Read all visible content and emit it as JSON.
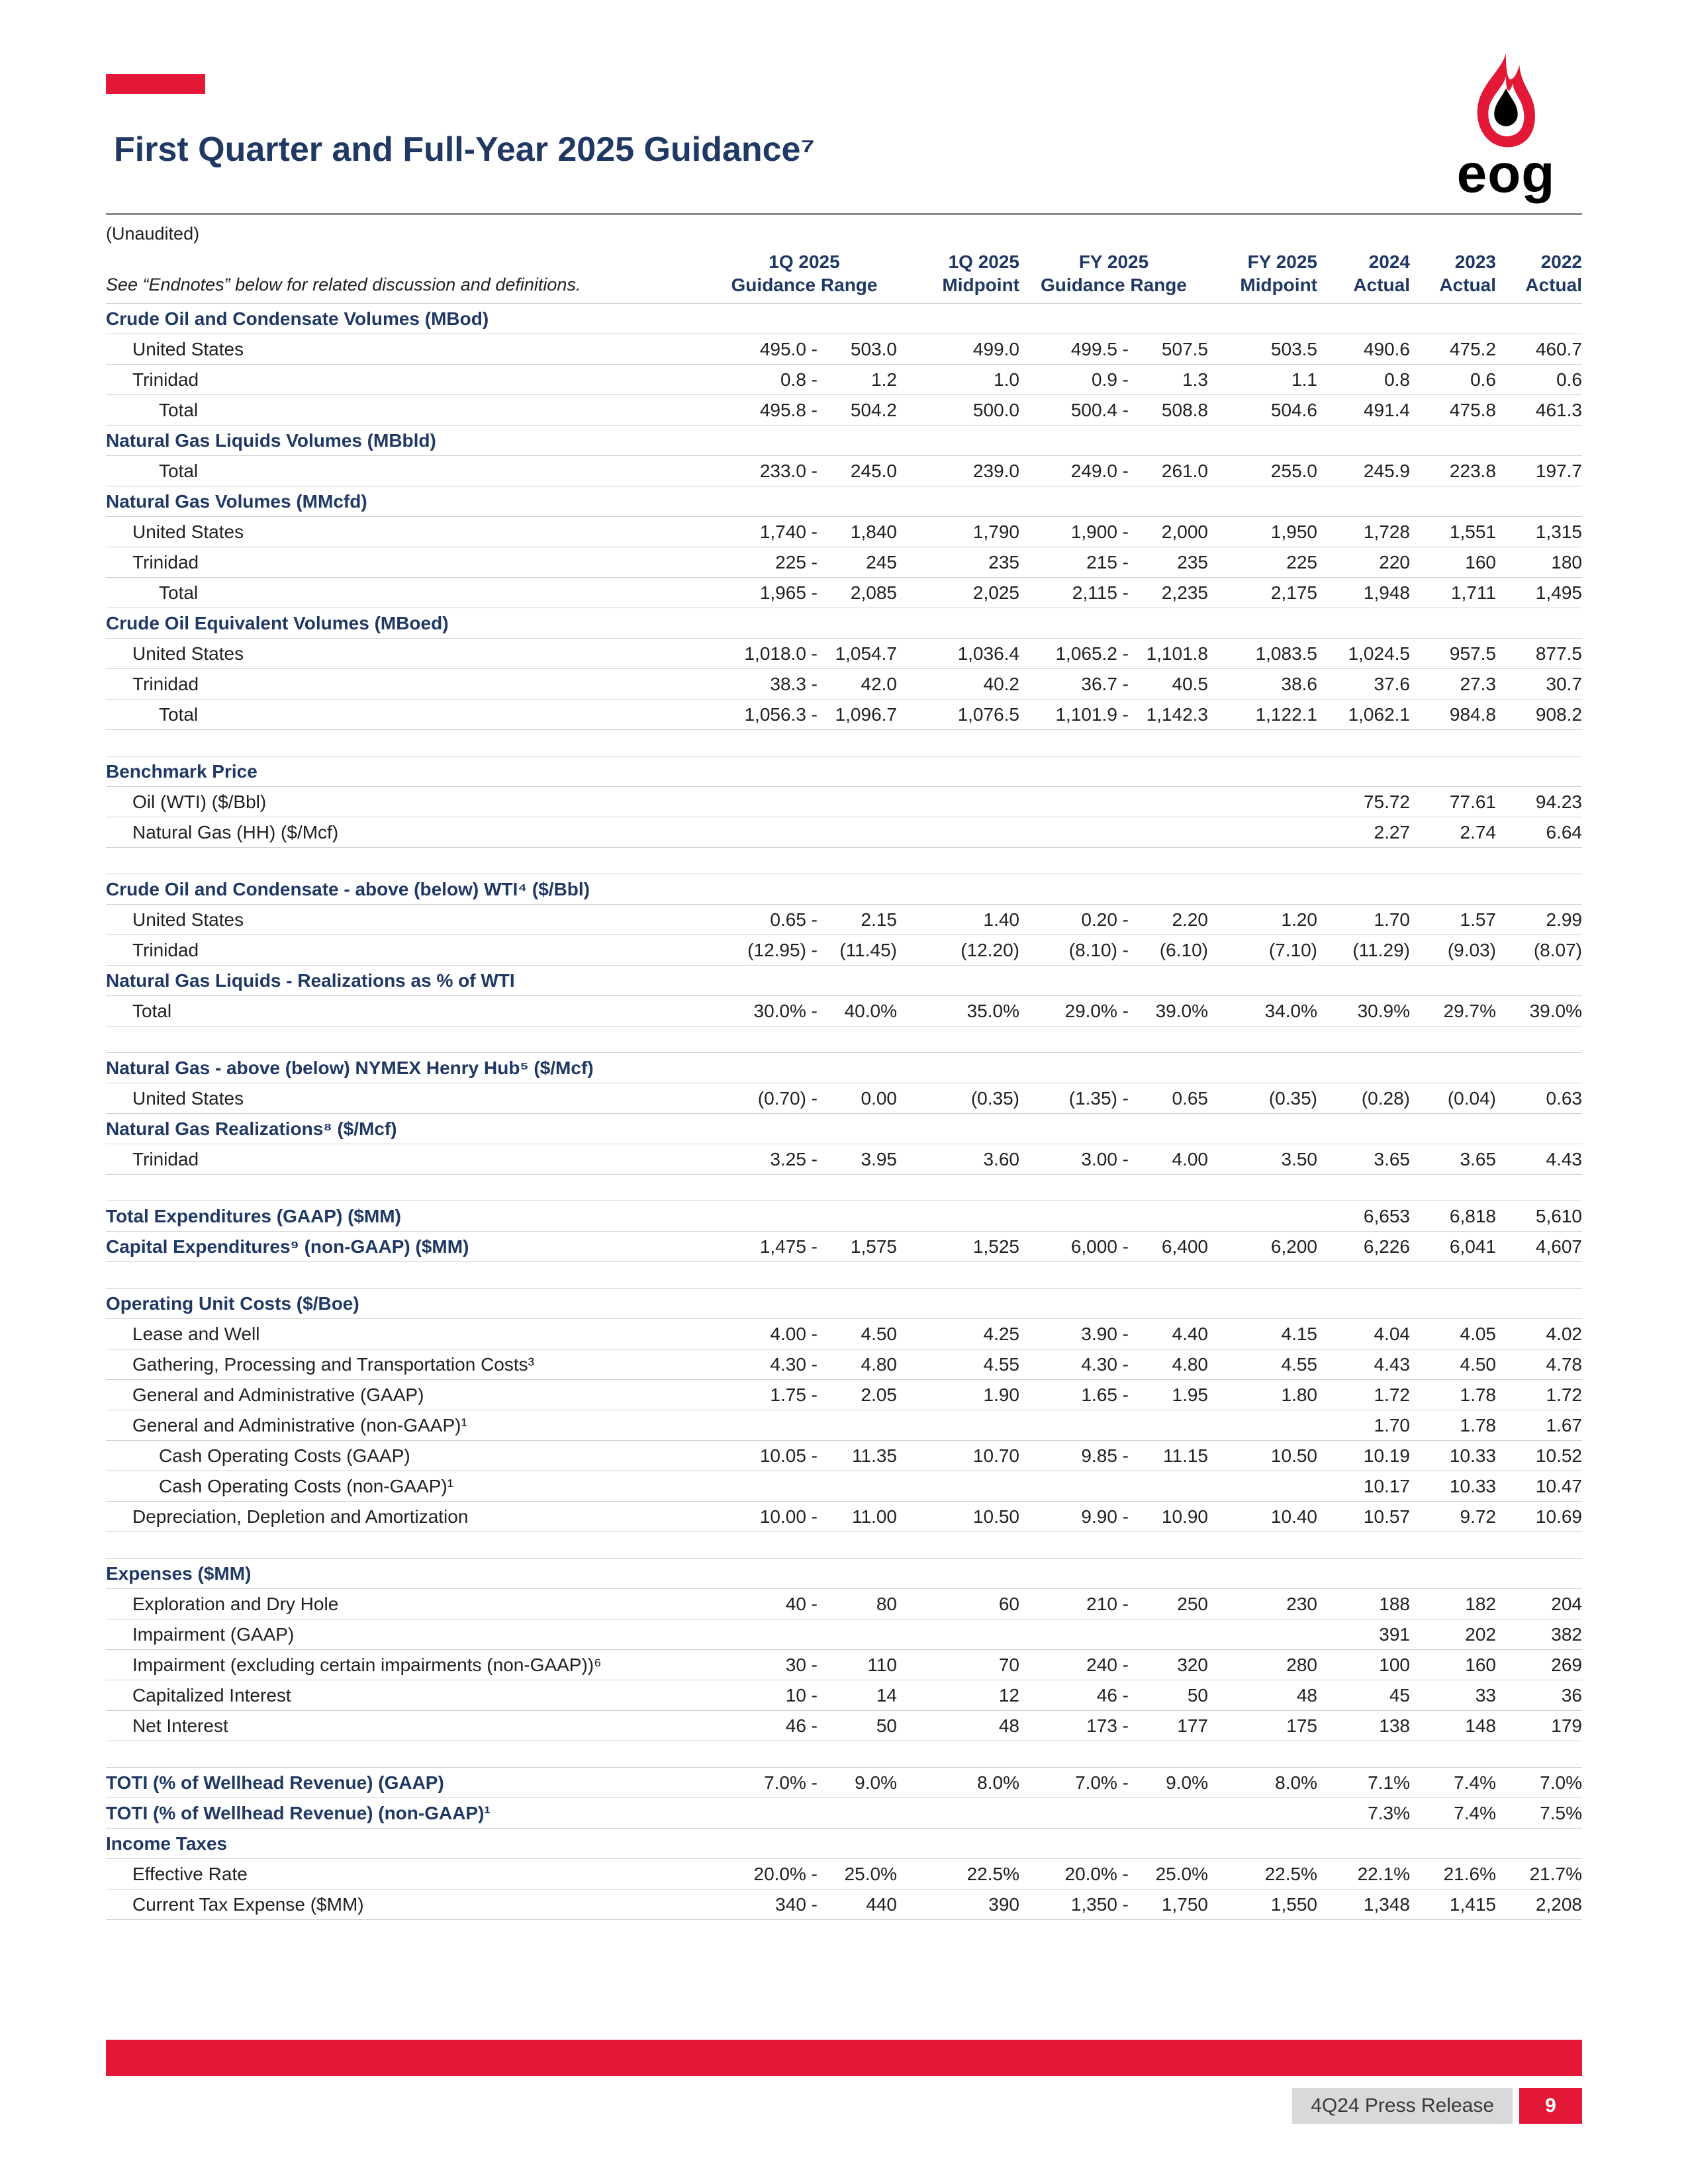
{
  "page": {
    "title": "First Quarter and Full-Year 2025 Guidance⁷",
    "unaudited": "(Unaudited)",
    "logo_text": "eog",
    "footer": {
      "label": "4Q24 Press Release",
      "page_number": "9"
    },
    "colors": {
      "accent_red": "#E31837",
      "heading_navy": "#1F3864",
      "body_text": "#212121",
      "row_line": "#CFCFCF"
    }
  },
  "table": {
    "note": "See “Endnotes” below for related discussion and definitions.",
    "column_headers": [
      {
        "line1": "1Q 2025",
        "line2": "Guidance Range"
      },
      {
        "line1": "1Q 2025",
        "line2": "Midpoint"
      },
      {
        "line1": "FY 2025",
        "line2": "Guidance Range"
      },
      {
        "line1": "FY 2025",
        "line2": "Midpoint"
      },
      {
        "line1": "2024",
        "line2": "Actual"
      },
      {
        "line1": "2023",
        "line2": "Actual"
      },
      {
        "line1": "2022",
        "line2": "Actual"
      }
    ],
    "rows": [
      {
        "type": "section",
        "label": "Crude Oil and Condensate Volumes (MBod)"
      },
      {
        "type": "data",
        "indent": 1,
        "label": "United States",
        "q1_low": "495.0",
        "q1_high": "503.0",
        "q1_mid": "499.0",
        "fy_low": "499.5",
        "fy_high": "507.5",
        "fy_mid": "503.5",
        "y2024": "490.6",
        "y2023": "475.2",
        "y2022": "460.7"
      },
      {
        "type": "data",
        "indent": 1,
        "label": "Trinidad",
        "q1_low": "0.8",
        "q1_high": "1.2",
        "q1_mid": "1.0",
        "fy_low": "0.9",
        "fy_high": "1.3",
        "fy_mid": "1.1",
        "y2024": "0.8",
        "y2023": "0.6",
        "y2022": "0.6"
      },
      {
        "type": "data",
        "indent": 2,
        "label": "Total",
        "q1_low": "495.8",
        "q1_high": "504.2",
        "q1_mid": "500.0",
        "fy_low": "500.4",
        "fy_high": "508.8",
        "fy_mid": "504.6",
        "y2024": "491.4",
        "y2023": "475.8",
        "y2022": "461.3"
      },
      {
        "type": "section",
        "label": "Natural Gas Liquids Volumes (MBbld)"
      },
      {
        "type": "data",
        "indent": 2,
        "label": "Total",
        "q1_low": "233.0",
        "q1_high": "245.0",
        "q1_mid": "239.0",
        "fy_low": "249.0",
        "fy_high": "261.0",
        "fy_mid": "255.0",
        "y2024": "245.9",
        "y2023": "223.8",
        "y2022": "197.7"
      },
      {
        "type": "section",
        "label": "Natural Gas Volumes (MMcfd)"
      },
      {
        "type": "data",
        "indent": 1,
        "label": "United States",
        "q1_low": "1,740",
        "q1_high": "1,840",
        "q1_mid": "1,790",
        "fy_low": "1,900",
        "fy_high": "2,000",
        "fy_mid": "1,950",
        "y2024": "1,728",
        "y2023": "1,551",
        "y2022": "1,315"
      },
      {
        "type": "data",
        "indent": 1,
        "label": "Trinidad",
        "q1_low": "225",
        "q1_high": "245",
        "q1_mid": "235",
        "fy_low": "215",
        "fy_high": "235",
        "fy_mid": "225",
        "y2024": "220",
        "y2023": "160",
        "y2022": "180"
      },
      {
        "type": "data",
        "indent": 2,
        "label": "Total",
        "q1_low": "1,965",
        "q1_high": "2,085",
        "q1_mid": "2,025",
        "fy_low": "2,115",
        "fy_high": "2,235",
        "fy_mid": "2,175",
        "y2024": "1,948",
        "y2023": "1,711",
        "y2022": "1,495"
      },
      {
        "type": "section",
        "label": "Crude Oil Equivalent Volumes (MBoed)"
      },
      {
        "type": "data",
        "indent": 1,
        "label": "United States",
        "q1_low": "1,018.0",
        "q1_high": "1,054.7",
        "q1_mid": "1,036.4",
        "fy_low": "1,065.2",
        "fy_high": "1,101.8",
        "fy_mid": "1,083.5",
        "y2024": "1,024.5",
        "y2023": "957.5",
        "y2022": "877.5"
      },
      {
        "type": "data",
        "indent": 1,
        "label": "Trinidad",
        "q1_low": "38.3",
        "q1_high": "42.0",
        "q1_mid": "40.2",
        "fy_low": "36.7",
        "fy_high": "40.5",
        "fy_mid": "38.6",
        "y2024": "37.6",
        "y2023": "27.3",
        "y2022": "30.7"
      },
      {
        "type": "data",
        "indent": 2,
        "label": "Total",
        "q1_low": "1,056.3",
        "q1_high": "1,096.7",
        "q1_mid": "1,076.5",
        "fy_low": "1,101.9",
        "fy_high": "1,142.3",
        "fy_mid": "1,122.1",
        "y2024": "1,062.1",
        "y2023": "984.8",
        "y2022": "908.2"
      },
      {
        "type": "spacer"
      },
      {
        "type": "section",
        "label": "Benchmark Price"
      },
      {
        "type": "data",
        "indent": 1,
        "label": "Oil (WTI) ($/Bbl)",
        "y2024": "75.72",
        "y2023": "77.61",
        "y2022": "94.23"
      },
      {
        "type": "data",
        "indent": 1,
        "label": "Natural Gas (HH) ($/Mcf)",
        "y2024": "2.27",
        "y2023": "2.74",
        "y2022": "6.64"
      },
      {
        "type": "spacer"
      },
      {
        "type": "section",
        "label": "Crude Oil and Condensate - above (below) WTI⁴ ($/Bbl)"
      },
      {
        "type": "data",
        "indent": 1,
        "label": "United States",
        "q1_low": "0.65",
        "q1_high": "2.15",
        "q1_mid": "1.40",
        "fy_low": "0.20",
        "fy_high": "2.20",
        "fy_mid": "1.20",
        "y2024": "1.70",
        "y2023": "1.57",
        "y2022": "2.99"
      },
      {
        "type": "data",
        "indent": 1,
        "label": "Trinidad",
        "q1_low": "(12.95)",
        "q1_high": "(11.45)",
        "q1_mid": "(12.20)",
        "fy_low": "(8.10)",
        "fy_high": "(6.10)",
        "fy_mid": "(7.10)",
        "y2024": "(11.29)",
        "y2023": "(9.03)",
        "y2022": "(8.07)"
      },
      {
        "type": "section",
        "label": "Natural Gas Liquids - Realizations as % of WTI"
      },
      {
        "type": "data",
        "indent": 1,
        "label": "Total",
        "q1_low": "30.0%",
        "q1_high": "40.0%",
        "q1_mid": "35.0%",
        "fy_low": "29.0%",
        "fy_high": "39.0%",
        "fy_mid": "34.0%",
        "y2024": "30.9%",
        "y2023": "29.7%",
        "y2022": "39.0%"
      },
      {
        "type": "spacer"
      },
      {
        "type": "section",
        "label": "Natural Gas - above (below) NYMEX Henry Hub⁵ ($/Mcf)"
      },
      {
        "type": "data",
        "indent": 1,
        "label": "United States",
        "q1_low": "(0.70)",
        "q1_high": "0.00",
        "q1_mid": "(0.35)",
        "fy_low": "(1.35)",
        "fy_high": "0.65",
        "fy_mid": "(0.35)",
        "y2024": "(0.28)",
        "y2023": "(0.04)",
        "y2022": "0.63"
      },
      {
        "type": "section",
        "label": "Natural Gas Realizations⁸ ($/Mcf)"
      },
      {
        "type": "data",
        "indent": 1,
        "label": "Trinidad",
        "q1_low": "3.25",
        "q1_high": "3.95",
        "q1_mid": "3.60",
        "fy_low": "3.00",
        "fy_high": "4.00",
        "fy_mid": "3.50",
        "y2024": "3.65",
        "y2023": "3.65",
        "y2022": "4.43"
      },
      {
        "type": "spacer"
      },
      {
        "type": "data",
        "indent": 0,
        "bold": true,
        "label": "Total Expenditures (GAAP) ($MM)",
        "y2024": "6,653",
        "y2023": "6,818",
        "y2022": "5,610"
      },
      {
        "type": "data",
        "indent": 0,
        "bold": true,
        "label": "Capital Expenditures⁹ (non-GAAP) ($MM)",
        "q1_low": "1,475",
        "q1_high": "1,575",
        "q1_mid": "1,525",
        "fy_low": "6,000",
        "fy_high": "6,400",
        "fy_mid": "6,200",
        "y2024": "6,226",
        "y2023": "6,041",
        "y2022": "4,607"
      },
      {
        "type": "spacer"
      },
      {
        "type": "section",
        "label": "Operating Unit Costs ($/Boe)"
      },
      {
        "type": "data",
        "indent": 1,
        "label": "Lease and Well",
        "q1_low": "4.00",
        "q1_high": "4.50",
        "q1_mid": "4.25",
        "fy_low": "3.90",
        "fy_high": "4.40",
        "fy_mid": "4.15",
        "y2024": "4.04",
        "y2023": "4.05",
        "y2022": "4.02"
      },
      {
        "type": "data",
        "indent": 1,
        "label": "Gathering, Processing and Transportation Costs³",
        "q1_low": "4.30",
        "q1_high": "4.80",
        "q1_mid": "4.55",
        "fy_low": "4.30",
        "fy_high": "4.80",
        "fy_mid": "4.55",
        "y2024": "4.43",
        "y2023": "4.50",
        "y2022": "4.78"
      },
      {
        "type": "data",
        "indent": 1,
        "label": "General and Administrative (GAAP)",
        "q1_low": "1.75",
        "q1_high": "2.05",
        "q1_mid": "1.90",
        "fy_low": "1.65",
        "fy_high": "1.95",
        "fy_mid": "1.80",
        "y2024": "1.72",
        "y2023": "1.78",
        "y2022": "1.72"
      },
      {
        "type": "data",
        "indent": 1,
        "label": "General and Administrative (non-GAAP)¹",
        "y2024": "1.70",
        "y2023": "1.78",
        "y2022": "1.67"
      },
      {
        "type": "data",
        "indent": 2,
        "label": "Cash Operating Costs (GAAP)",
        "q1_low": "10.05",
        "q1_high": "11.35",
        "q1_mid": "10.70",
        "fy_low": "9.85",
        "fy_high": "11.15",
        "fy_mid": "10.50",
        "y2024": "10.19",
        "y2023": "10.33",
        "y2022": "10.52"
      },
      {
        "type": "data",
        "indent": 2,
        "label": "Cash Operating Costs (non-GAAP)¹",
        "y2024": "10.17",
        "y2023": "10.33",
        "y2022": "10.47"
      },
      {
        "type": "data",
        "indent": 1,
        "label": "Depreciation, Depletion and Amortization",
        "q1_low": "10.00",
        "q1_high": "11.00",
        "q1_mid": "10.50",
        "fy_low": "9.90",
        "fy_high": "10.90",
        "fy_mid": "10.40",
        "y2024": "10.57",
        "y2023": "9.72",
        "y2022": "10.69"
      },
      {
        "type": "spacer"
      },
      {
        "type": "section",
        "label": "Expenses ($MM)"
      },
      {
        "type": "data",
        "indent": 1,
        "label": "Exploration and Dry Hole",
        "q1_low": "40",
        "q1_high": "80",
        "q1_mid": "60",
        "fy_low": "210",
        "fy_high": "250",
        "fy_mid": "230",
        "y2024": "188",
        "y2023": "182",
        "y2022": "204"
      },
      {
        "type": "data",
        "indent": 1,
        "label": "Impairment (GAAP)",
        "y2024": "391",
        "y2023": "202",
        "y2022": "382"
      },
      {
        "type": "data",
        "indent": 1,
        "label": "Impairment (excluding certain impairments (non-GAAP))⁶",
        "q1_low": "30",
        "q1_high": "110",
        "q1_mid": "70",
        "fy_low": "240",
        "fy_high": "320",
        "fy_mid": "280",
        "y2024": "100",
        "y2023": "160",
        "y2022": "269"
      },
      {
        "type": "data",
        "indent": 1,
        "label": "Capitalized Interest",
        "q1_low": "10",
        "q1_high": "14",
        "q1_mid": "12",
        "fy_low": "46",
        "fy_high": "50",
        "fy_mid": "48",
        "y2024": "45",
        "y2023": "33",
        "y2022": "36"
      },
      {
        "type": "data",
        "indent": 1,
        "label": "Net Interest",
        "q1_low": "46",
        "q1_high": "50",
        "q1_mid": "48",
        "fy_low": "173",
        "fy_high": "177",
        "fy_mid": "175",
        "y2024": "138",
        "y2023": "148",
        "y2022": "179"
      },
      {
        "type": "spacer"
      },
      {
        "type": "data",
        "indent": 0,
        "bold": true,
        "label": "TOTI (% of Wellhead Revenue) (GAAP)",
        "q1_low": "7.0%",
        "q1_high": "9.0%",
        "q1_mid": "8.0%",
        "fy_low": "7.0%",
        "fy_high": "9.0%",
        "fy_mid": "8.0%",
        "y2024": "7.1%",
        "y2023": "7.4%",
        "y2022": "7.0%"
      },
      {
        "type": "data",
        "indent": 0,
        "bold": true,
        "label": "TOTI (% of Wellhead Revenue) (non-GAAP)¹",
        "y2024": "7.3%",
        "y2023": "7.4%",
        "y2022": "7.5%"
      },
      {
        "type": "section",
        "label": "Income Taxes"
      },
      {
        "type": "data",
        "indent": 1,
        "label": "Effective Rate",
        "q1_low": "20.0%",
        "q1_high": "25.0%",
        "q1_mid": "22.5%",
        "fy_low": "20.0%",
        "fy_high": "25.0%",
        "fy_mid": "22.5%",
        "y2024": "22.1%",
        "y2023": "21.6%",
        "y2022": "21.7%"
      },
      {
        "type": "data",
        "indent": 1,
        "label": "Current Tax Expense ($MM)",
        "q1_low": "340",
        "q1_high": "440",
        "q1_mid": "390",
        "fy_low": "1,350",
        "fy_high": "1,750",
        "fy_mid": "1,550",
        "y2024": "1,348",
        "y2023": "1,415",
        "y2022": "2,208"
      }
    ]
  }
}
